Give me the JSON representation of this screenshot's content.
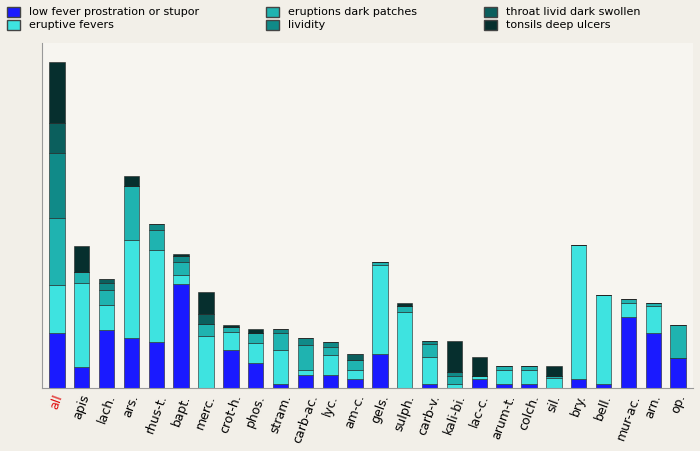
{
  "chart_data": {
    "type": "bar",
    "stacked": true,
    "tick_labels": "x",
    "legend": "upper left",
    "categories": [
      "all",
      "apis",
      "lach.",
      "ars.",
      "rhus-t.",
      "bapt.",
      "merc.",
      "crot-h.",
      "phos.",
      "stram.",
      "carb-ac.",
      "lyc.",
      "am-c.",
      "gels.",
      "sulph.",
      "carb-v.",
      "kali-bi.",
      "lac-c.",
      "arum-t.",
      "colch.",
      "sil.",
      "bry.",
      "bell.",
      "mur-ac.",
      "arn.",
      "op."
    ],
    "ylim": [
      0,
      345
    ],
    "yticks": [],
    "series": [
      {
        "name": "low fever prostration or stupor",
        "color": "#1a1aff",
        "values": [
          55,
          21,
          58,
          50,
          46,
          104,
          0,
          38,
          25,
          4,
          13,
          13,
          9,
          34,
          0,
          4,
          0,
          9,
          4,
          4,
          0,
          9,
          4,
          71,
          55,
          30
        ]
      },
      {
        "name": "eruptive fevers",
        "color": "#3ee3e0",
        "values": [
          48,
          84,
          25,
          98,
          92,
          9,
          52,
          18,
          20,
          34,
          5,
          20,
          9,
          89,
          76,
          27,
          4,
          3,
          14,
          14,
          10,
          134,
          89,
          14,
          27,
          0
        ]
      },
      {
        "name": "eruptions dark patches",
        "color": "#1fb3b0",
        "values": [
          67,
          11,
          15,
          54,
          20,
          13,
          12,
          5,
          10,
          17,
          25,
          8,
          10,
          3,
          6,
          13,
          8,
          0,
          4,
          4,
          2,
          0,
          0,
          4,
          3,
          33
        ]
      },
      {
        "name": "lividity",
        "color": "#108a88",
        "values": [
          65,
          0,
          7,
          0,
          6,
          6,
          0,
          0,
          0,
          4,
          7,
          5,
          0,
          0,
          0,
          3,
          4,
          0,
          0,
          0,
          0,
          0,
          0,
          0,
          0,
          0
        ]
      },
      {
        "name": "throat livid dark swollen",
        "color": "#0b5f5d",
        "values": [
          30,
          0,
          4,
          0,
          0,
          0,
          10,
          0,
          0,
          0,
          0,
          0,
          6,
          0,
          0,
          0,
          0,
          0,
          0,
          0,
          0,
          0,
          0,
          0,
          0,
          0
        ]
      },
      {
        "name": "tonsils deep ulcers",
        "color": "#062f2e",
        "values": [
          61,
          26,
          0,
          10,
          0,
          2,
          22,
          2,
          4,
          0,
          0,
          0,
          0,
          0,
          3,
          0,
          31,
          19,
          0,
          0,
          10,
          0,
          0,
          0,
          0,
          0
        ]
      }
    ]
  }
}
